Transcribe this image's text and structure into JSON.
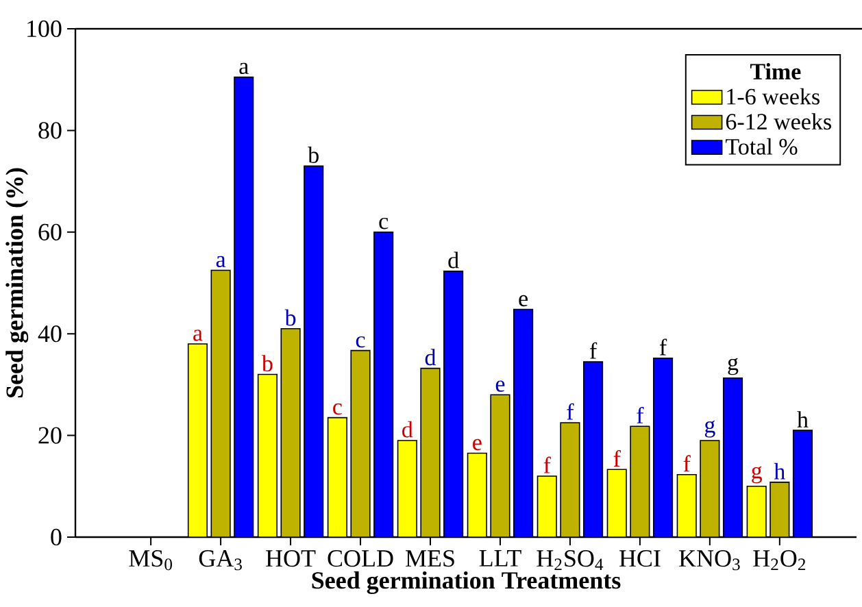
{
  "chart_data": {
    "type": "bar",
    "xlabel": "Seed germination Treatments",
    "ylabel": "Seed germination (%)",
    "legend_title": "Time",
    "legend": "top right",
    "categories": [
      "MS$_{0}$",
      "GA$_{3}$",
      "HOT",
      "COLD",
      "MES",
      "LLT",
      "H$_{2}$SO$_{4}$",
      "HCI",
      "KNO$_{3}$",
      "H$_{2}$O$_{2}$"
    ],
    "series": [
      {
        "name": "1-6 weeks",
        "color": "#ffff00",
        "values": [
          null,
          38,
          32,
          23.5,
          19,
          16.5,
          12,
          13.3,
          12.3,
          10
        ],
        "value_labels": [
          null,
          "a",
          "b",
          "c",
          "d",
          "e",
          "f",
          "f",
          "f",
          "g"
        ]
      },
      {
        "name": "6-12 weeks",
        "color": "#bfb300",
        "values": [
          null,
          52.5,
          41,
          36.7,
          33.2,
          28,
          22.5,
          21.8,
          19,
          10.8
        ],
        "value_labels": [
          null,
          "a",
          "b",
          "c",
          "d",
          "e",
          "f",
          "f",
          "g",
          "h"
        ]
      },
      {
        "name": "Total %",
        "color": "#0000ff",
        "values": [
          null,
          90.5,
          73,
          60,
          52.3,
          44.8,
          34.5,
          35.2,
          31.3,
          21
        ],
        "value_labels": [
          null,
          "a",
          "b",
          "c",
          "d",
          "e",
          "f",
          "f",
          "g",
          "h"
        ]
      }
    ],
    "ylim": [
      0,
      100
    ],
    "yticks": [
      0,
      20,
      40,
      60,
      80,
      100
    ],
    "grid": false
  }
}
